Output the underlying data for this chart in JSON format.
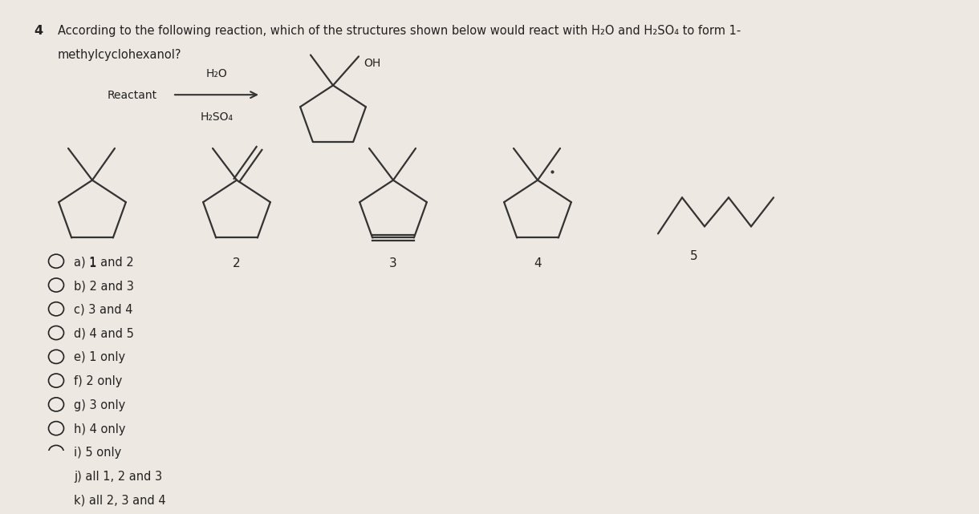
{
  "question_number": "4",
  "question_text_line1": "According to the following reaction, which of the structures shown below would react with H₂O and H₂SO₄ to form 1-",
  "question_text_line2": "methylcyclohexanol?",
  "reactant_label": "Reactant",
  "reagent1": "H₂O",
  "reagent2": "H₂SO₄",
  "product_oh_label": "OH",
  "answer_choices": [
    "a) 1 and 2",
    "b) 2 and 3",
    "c) 3 and 4",
    "d) 4 and 5",
    "e) 1 only",
    "f) 2 only",
    "g) 3 only",
    "h) 4 only",
    "i) 5 only",
    "j) all 1, 2 and 3",
    "k) all 2, 3 and 4"
  ],
  "structure_labels": [
    "1",
    "2",
    "3",
    "4",
    "5"
  ],
  "bg_color": "#ede8e2",
  "text_color": "#222222",
  "line_color": "#333333",
  "lw": 1.6
}
